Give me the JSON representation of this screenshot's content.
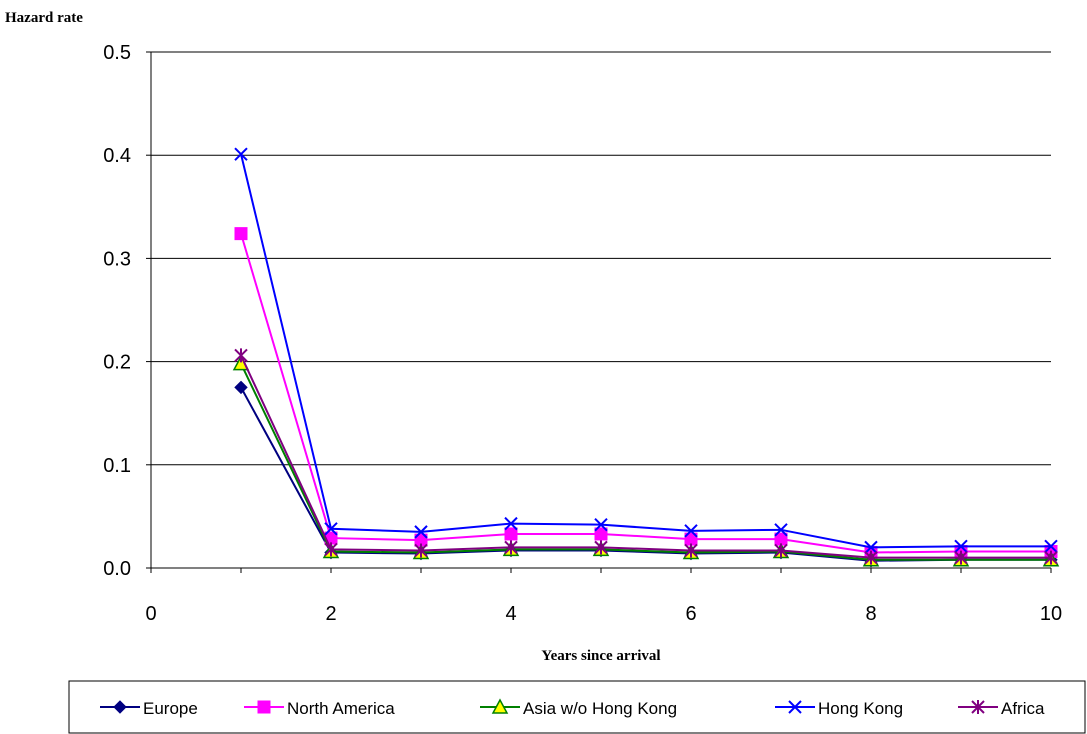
{
  "chart_data": {
    "type": "line",
    "title": "",
    "ylabel": "Hazard rate",
    "xlabel": "Years since arrival",
    "xlim": [
      0,
      10
    ],
    "ylim": [
      0,
      0.5
    ],
    "xticks": [
      0,
      2,
      4,
      6,
      8,
      10
    ],
    "xtick_labels": [
      "0",
      "2",
      "4",
      "6",
      "8",
      "10"
    ],
    "yticks": [
      0,
      0.1,
      0.2,
      0.3,
      0.4,
      0.5
    ],
    "ytick_labels": [
      "0.0",
      "0.1",
      "0.2",
      "0.3",
      "0.4",
      "0.5"
    ],
    "grid": "horizontal",
    "legend_position": "bottom",
    "x": [
      1,
      2,
      3,
      4,
      5,
      6,
      7,
      8,
      9,
      10
    ],
    "series": [
      {
        "name": "Europe",
        "color": "#000080",
        "marker": "diamond",
        "values": [
          0.175,
          0.015,
          0.014,
          0.017,
          0.017,
          0.014,
          0.015,
          0.007,
          0.008,
          0.008
        ]
      },
      {
        "name": "North America",
        "color": "#ff00ff",
        "marker": "square",
        "values": [
          0.324,
          0.029,
          0.027,
          0.033,
          0.033,
          0.028,
          0.028,
          0.015,
          0.016,
          0.016
        ]
      },
      {
        "name": "Asia w/o Hong Kong",
        "color": "#008000",
        "marker": "triangle",
        "values": [
          0.198,
          0.016,
          0.015,
          0.018,
          0.018,
          0.015,
          0.016,
          0.008,
          0.008,
          0.008
        ]
      },
      {
        "name": "Hong Kong",
        "color": "#0000ff",
        "marker": "x",
        "values": [
          0.401,
          0.038,
          0.035,
          0.043,
          0.042,
          0.036,
          0.037,
          0.02,
          0.021,
          0.021
        ]
      },
      {
        "name": "Africa",
        "color": "#800080",
        "marker": "star",
        "values": [
          0.206,
          0.018,
          0.017,
          0.02,
          0.02,
          0.017,
          0.017,
          0.01,
          0.01,
          0.01
        ]
      }
    ]
  }
}
